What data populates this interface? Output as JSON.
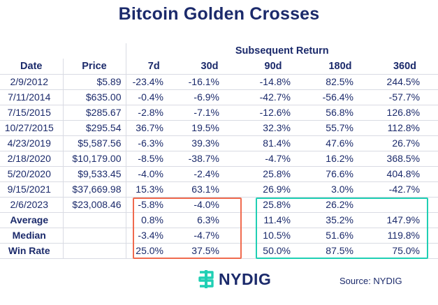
{
  "title": "Bitcoin Golden Crosses",
  "table": {
    "group_header": "Subsequent Return",
    "columns": [
      "Date",
      "Price",
      "7d",
      "30d",
      "90d",
      "180d",
      "360d"
    ],
    "rows": [
      [
        "2/9/2012",
        "$5.89",
        "-23.4%",
        "-16.1%",
        "-14.8%",
        "82.5%",
        "244.5%"
      ],
      [
        "7/11/2014",
        "$635.00",
        "-0.4%",
        "-6.9%",
        "-42.7%",
        "-56.4%",
        "-57.7%"
      ],
      [
        "7/15/2015",
        "$285.67",
        "-2.8%",
        "-7.1%",
        "-12.6%",
        "56.8%",
        "126.8%"
      ],
      [
        "10/27/2015",
        "$295.54",
        "36.7%",
        "19.5%",
        "32.3%",
        "55.7%",
        "112.8%"
      ],
      [
        "4/23/2019",
        "$5,587.56",
        "-6.3%",
        "39.3%",
        "81.4%",
        "47.6%",
        "26.7%"
      ],
      [
        "2/18/2020",
        "$10,179.00",
        "-8.5%",
        "-38.7%",
        "-4.7%",
        "16.2%",
        "368.5%"
      ],
      [
        "5/20/2020",
        "$9,533.45",
        "-4.0%",
        "-2.4%",
        "25.8%",
        "76.6%",
        "404.8%"
      ],
      [
        "9/15/2021",
        "$37,669.98",
        "15.3%",
        "63.1%",
        "26.9%",
        "3.0%",
        "-42.7%"
      ],
      [
        "2/6/2023",
        "$23,008.46",
        "-5.8%",
        "-4.0%",
        "25.8%",
        "26.2%",
        ""
      ]
    ],
    "stats": [
      [
        "Average",
        "",
        "0.8%",
        "6.3%",
        "11.4%",
        "35.2%",
        "147.9%"
      ],
      [
        "Median",
        "",
        "-3.4%",
        "-4.7%",
        "10.5%",
        "51.6%",
        "119.8%"
      ],
      [
        "Win Rate",
        "",
        "25.0%",
        "37.5%",
        "50.0%",
        "87.5%",
        "75.0%"
      ]
    ]
  },
  "highlight_colors": {
    "short_term_box": "#f06a4e",
    "long_term_box": "#1fcfb4"
  },
  "logo": {
    "icon": "nydig-logo-icon",
    "text": "NYDIG"
  },
  "source": "Source: NYDIG"
}
